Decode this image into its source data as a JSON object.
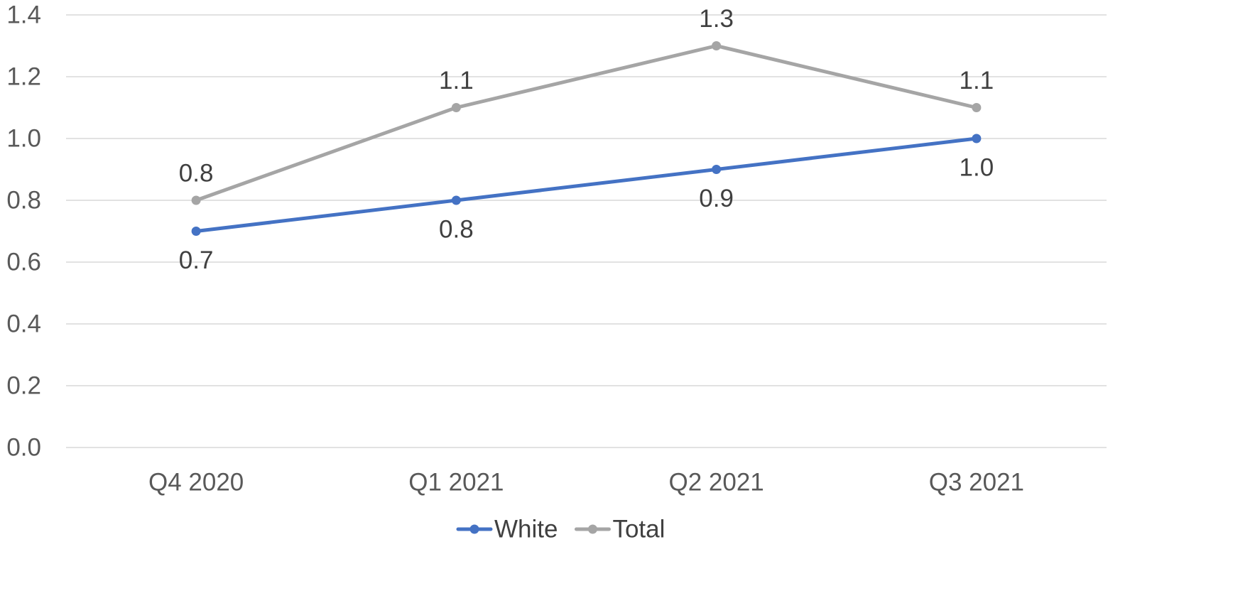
{
  "chart_data": {
    "type": "line",
    "categories": [
      "Q4 2020",
      "Q1 2021",
      "Q2 2021",
      "Q3 2021"
    ],
    "series": [
      {
        "name": "White",
        "values": [
          0.7,
          0.8,
          0.9,
          1.0
        ],
        "labels": [
          "0.7",
          "0.8",
          "0.9",
          "1.0"
        ],
        "color": "#4472c4",
        "label_position": "below"
      },
      {
        "name": "Total",
        "values": [
          0.8,
          1.1,
          1.3,
          1.1
        ],
        "labels": [
          "0.8",
          "1.1",
          "1.3",
          "1.1"
        ],
        "color": "#a5a5a5",
        "label_position": "above"
      }
    ],
    "y_ticks": [
      "0.0",
      "0.2",
      "0.4",
      "0.6",
      "0.8",
      "1.0",
      "1.2",
      "1.4"
    ],
    "ylim": [
      0,
      1.4
    ],
    "title": "",
    "xlabel": "",
    "ylabel": "",
    "grid": true,
    "legend": "bottom-center",
    "gridline_color": "#d9d9d9",
    "tick_label_color": "#595959",
    "data_label_color": "#404040"
  }
}
